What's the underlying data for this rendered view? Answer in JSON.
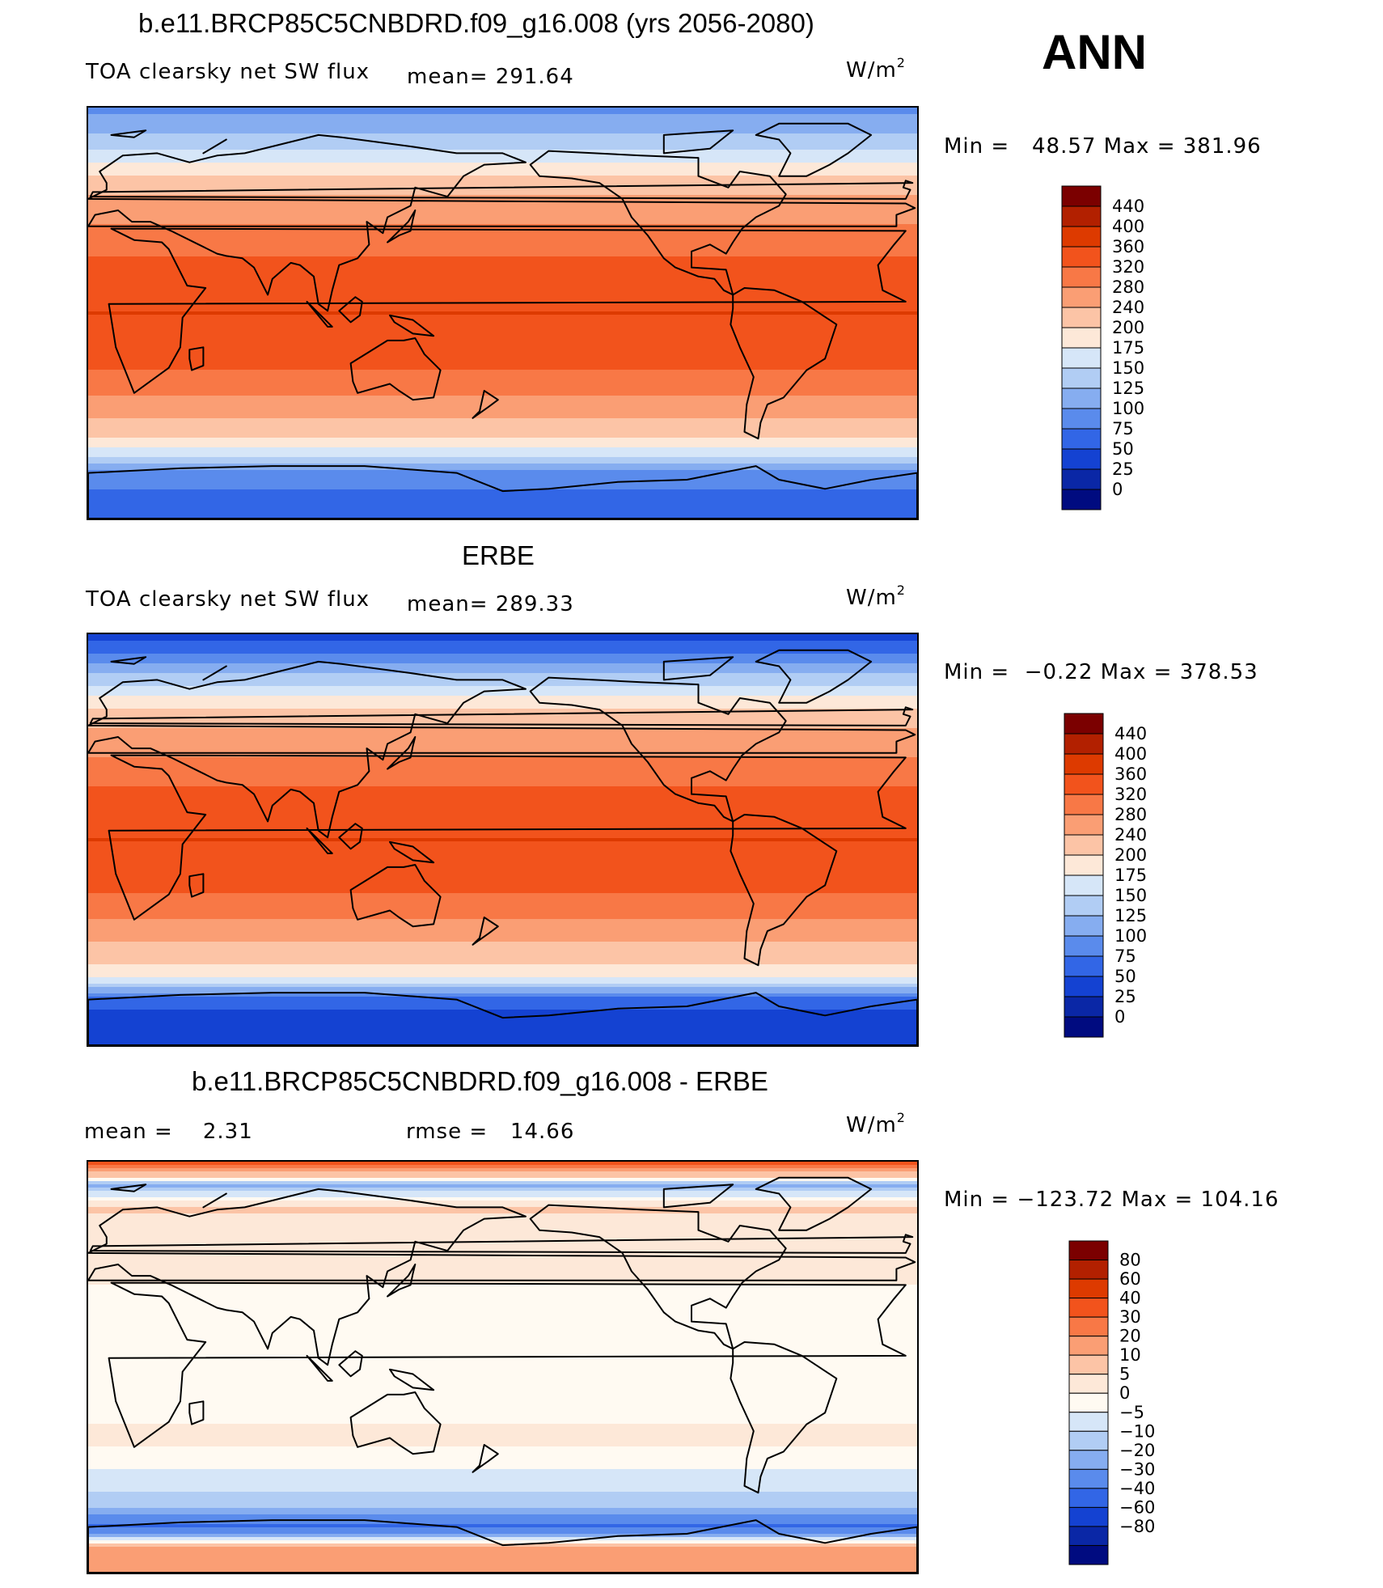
{
  "season": "ANN",
  "units": "W/m",
  "units_sup": "2",
  "panels": [
    {
      "title": "b.e11.BRCP85C5CNBDRD.f09_g16.008 (yrs 2056-2080)",
      "left_label": "TOA clearsky net SW flux",
      "mean_label": "mean= 291.64",
      "minmax": "Min =   48.57 Max = 381.96"
    },
    {
      "title": "ERBE",
      "left_label": "TOA clearsky net SW flux",
      "mean_label": "mean= 289.33",
      "minmax": "Min =  −0.22 Max = 378.53"
    },
    {
      "title": "b.e11.BRCP85C5CNBDRD.f09_g16.008 - ERBE",
      "left_label": "mean =    2.31",
      "mean_label": "rmse =   14.66",
      "minmax": "Min = −123.72 Max = 104.16"
    }
  ],
  "colorbars": {
    "abs": {
      "labels": [
        "440",
        "400",
        "360",
        "320",
        "280",
        "240",
        "200",
        "175",
        "150",
        "125",
        "100",
        "75",
        "50",
        "25",
        "0"
      ],
      "colors": [
        "#7b0000",
        "#b22000",
        "#dd3a00",
        "#f2531c",
        "#f87846",
        "#fa9e74",
        "#fcc4a6",
        "#fde8d8",
        "#d6e6f8",
        "#b1cdf4",
        "#86adf0",
        "#5a8bec",
        "#3266e6",
        "#1442d2",
        "#0a27a6",
        "#000b80"
      ]
    },
    "diff": {
      "labels": [
        "80",
        "60",
        "40",
        "30",
        "20",
        "10",
        "5",
        "0",
        "−5",
        "−10",
        "−20",
        "−30",
        "−40",
        "−60",
        "−80"
      ],
      "colors": [
        "#7b0000",
        "#b22000",
        "#dd3a00",
        "#f2531c",
        "#f87846",
        "#fa9e74",
        "#fcc4a6",
        "#fde8d8",
        "#fffaf2",
        "#d6e6f8",
        "#b1cdf4",
        "#86adf0",
        "#5a8bec",
        "#3266e6",
        "#1442d2",
        "#0a27a6",
        "#000b80"
      ]
    }
  },
  "fields": {
    "model": {
      "lats": [
        90,
        80,
        70,
        60,
        50,
        40,
        30,
        20,
        10,
        0,
        -10,
        -20,
        -30,
        -40,
        -50,
        -60,
        -70,
        -80,
        -90
      ],
      "vals": [
        90,
        120,
        155,
        200,
        245,
        275,
        305,
        335,
        355,
        360,
        355,
        335,
        300,
        265,
        225,
        170,
        90,
        70,
        60
      ]
    },
    "erbe": {
      "lats": [
        90,
        80,
        70,
        60,
        50,
        40,
        30,
        20,
        10,
        0,
        -10,
        -20,
        -30,
        -40,
        -50,
        -60,
        -70,
        -80,
        -90
      ],
      "vals": [
        40,
        80,
        140,
        190,
        235,
        270,
        300,
        330,
        352,
        360,
        352,
        330,
        295,
        262,
        220,
        180,
        60,
        40,
        30
      ]
    },
    "diff": {
      "lats": [
        90,
        80,
        70,
        60,
        50,
        40,
        30,
        20,
        10,
        0,
        -10,
        -20,
        -30,
        -40,
        -50,
        -60,
        -70,
        -80,
        -90
      ],
      "vals": [
        50,
        -12,
        12,
        6,
        8,
        6,
        3,
        3,
        2,
        3,
        3,
        4,
        6,
        4,
        -4,
        -6,
        -35,
        25,
        30
      ]
    }
  }
}
